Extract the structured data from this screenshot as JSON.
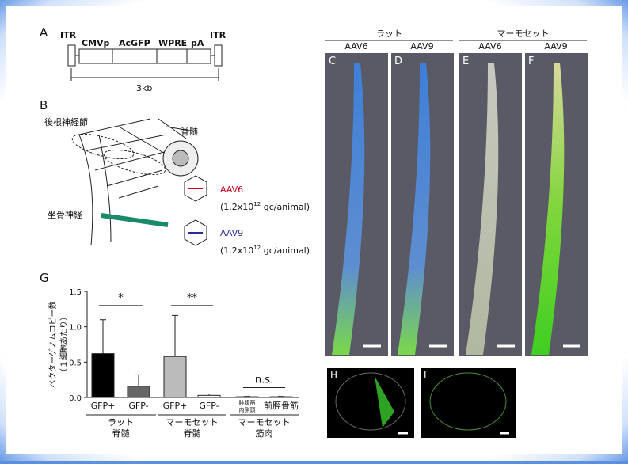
{
  "panel_a": {
    "letter": "A",
    "itr_left": "ITR",
    "elements": [
      "CMVp",
      "AcGFP",
      "WPRE",
      "pA"
    ],
    "itr_right": "ITR",
    "length": "3kb"
  },
  "panel_b": {
    "letter": "B",
    "labels": [
      "後根神経節",
      "脊髄",
      "坐骨神経"
    ],
    "vectors": [
      {
        "name": "AAV6",
        "color": "#c0001a",
        "dose": "(1.2x10",
        "exp": "12",
        "unit": " gc/animal)"
      },
      {
        "name": "AAV9",
        "color": "#2a2a9a",
        "dose": "(1.2x10",
        "exp": "12",
        "unit": " gc/animal)"
      }
    ]
  },
  "panel_g": {
    "type": "bar",
    "letter": "G",
    "ylabel": [
      "ベクターゲノムコピー数",
      "（１細胞あたり）"
    ],
    "categories": [
      [
        "GFP+"
      ],
      [
        "GFP-"
      ],
      [
        "GFP+"
      ],
      [
        "GFP-"
      ],
      [
        "腓腹筋",
        "内側頭"
      ],
      [
        "前脛骨筋"
      ]
    ],
    "values": [
      0.62,
      0.16,
      0.58,
      0.03,
      0.01,
      0.01
    ],
    "errors": [
      0.48,
      0.16,
      0.58,
      0.02,
      0.005,
      0.005
    ],
    "colors": [
      "#000000",
      "#666666",
      "#bbbbbb",
      "#ffffff",
      "#ffffff",
      "#ffffff"
    ],
    "groups": [
      [
        "ラット",
        "脊髄"
      ],
      [
        "マーモセット",
        "脊髄"
      ],
      [
        "マーモセット",
        "筋肉"
      ]
    ],
    "significance": [
      {
        "label": "*",
        "from": 0,
        "to": 1,
        "y": 1.3
      },
      {
        "label": "**",
        "from": 2,
        "to": 3,
        "y": 1.3
      },
      {
        "label": "n.s.",
        "from": 4,
        "to": 5,
        "y": 0.14
      }
    ],
    "ylim": [
      0,
      1.5
    ],
    "yticks": [
      {
        "value": 0,
        "label": "0.0"
      },
      {
        "value": 0.5,
        "label": "0.5"
      },
      {
        "value": 1,
        "label": "1.0"
      },
      {
        "value": 1.5,
        "label": "1.5"
      }
    ]
  },
  "images": {
    "species": [
      "ラット",
      "マーモセット"
    ],
    "panels": [
      {
        "letter": "C",
        "label": "AAV6"
      },
      {
        "letter": "D",
        "label": "AAV9"
      },
      {
        "letter": "E",
        "label": "AAV6"
      },
      {
        "letter": "F",
        "label": "AAV9"
      }
    ],
    "sections": [
      "H",
      "I"
    ]
  }
}
